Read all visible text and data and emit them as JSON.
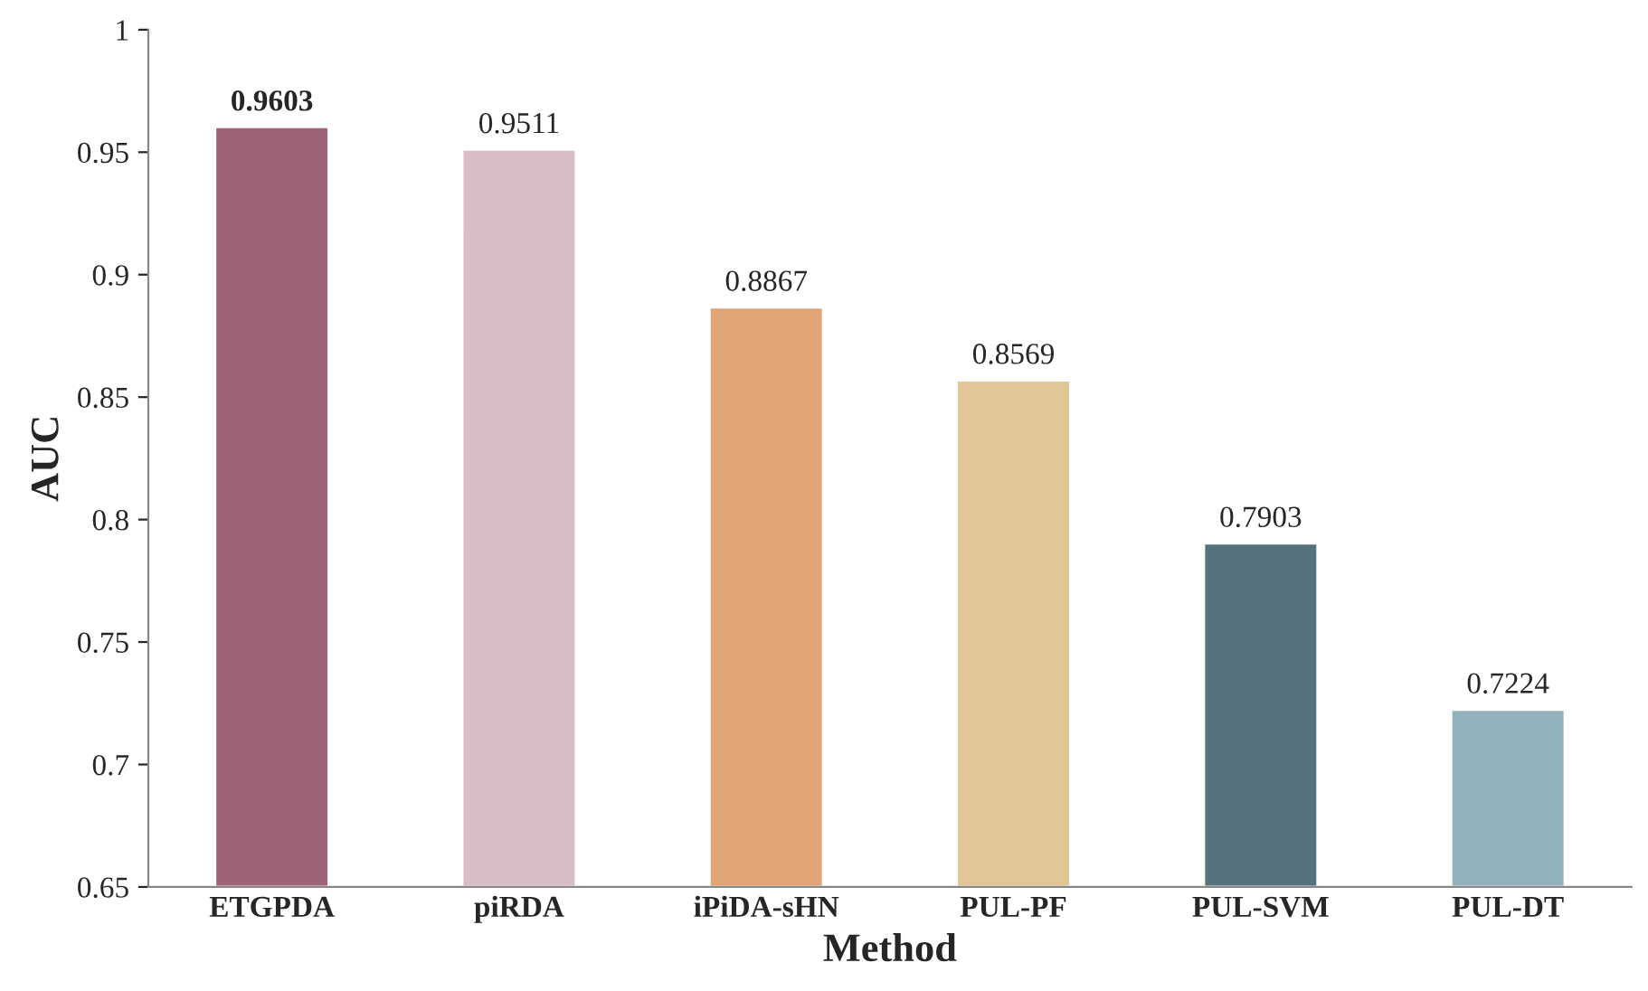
{
  "chart_data": {
    "type": "bar",
    "xlabel": "Method",
    "ylabel": "AUC",
    "categories": [
      "ETGPDA",
      "piRDA",
      "iPiDA-sHN",
      "PUL-PF",
      "PUL-SVM",
      "PUL-DT"
    ],
    "values": [
      0.9603,
      0.9511,
      0.8867,
      0.8569,
      0.7903,
      0.7224
    ],
    "colors": [
      "#9e6475",
      "#d8bcc6",
      "#e0a476",
      "#e3c698",
      "#56737d",
      "#93b1ba"
    ],
    "ylim": [
      0.65,
      1
    ],
    "yticks": [
      0.65,
      0.7,
      0.75,
      0.8,
      0.85,
      0.9,
      0.95,
      1
    ],
    "data_labels": true,
    "grid": false,
    "legend": false
  }
}
